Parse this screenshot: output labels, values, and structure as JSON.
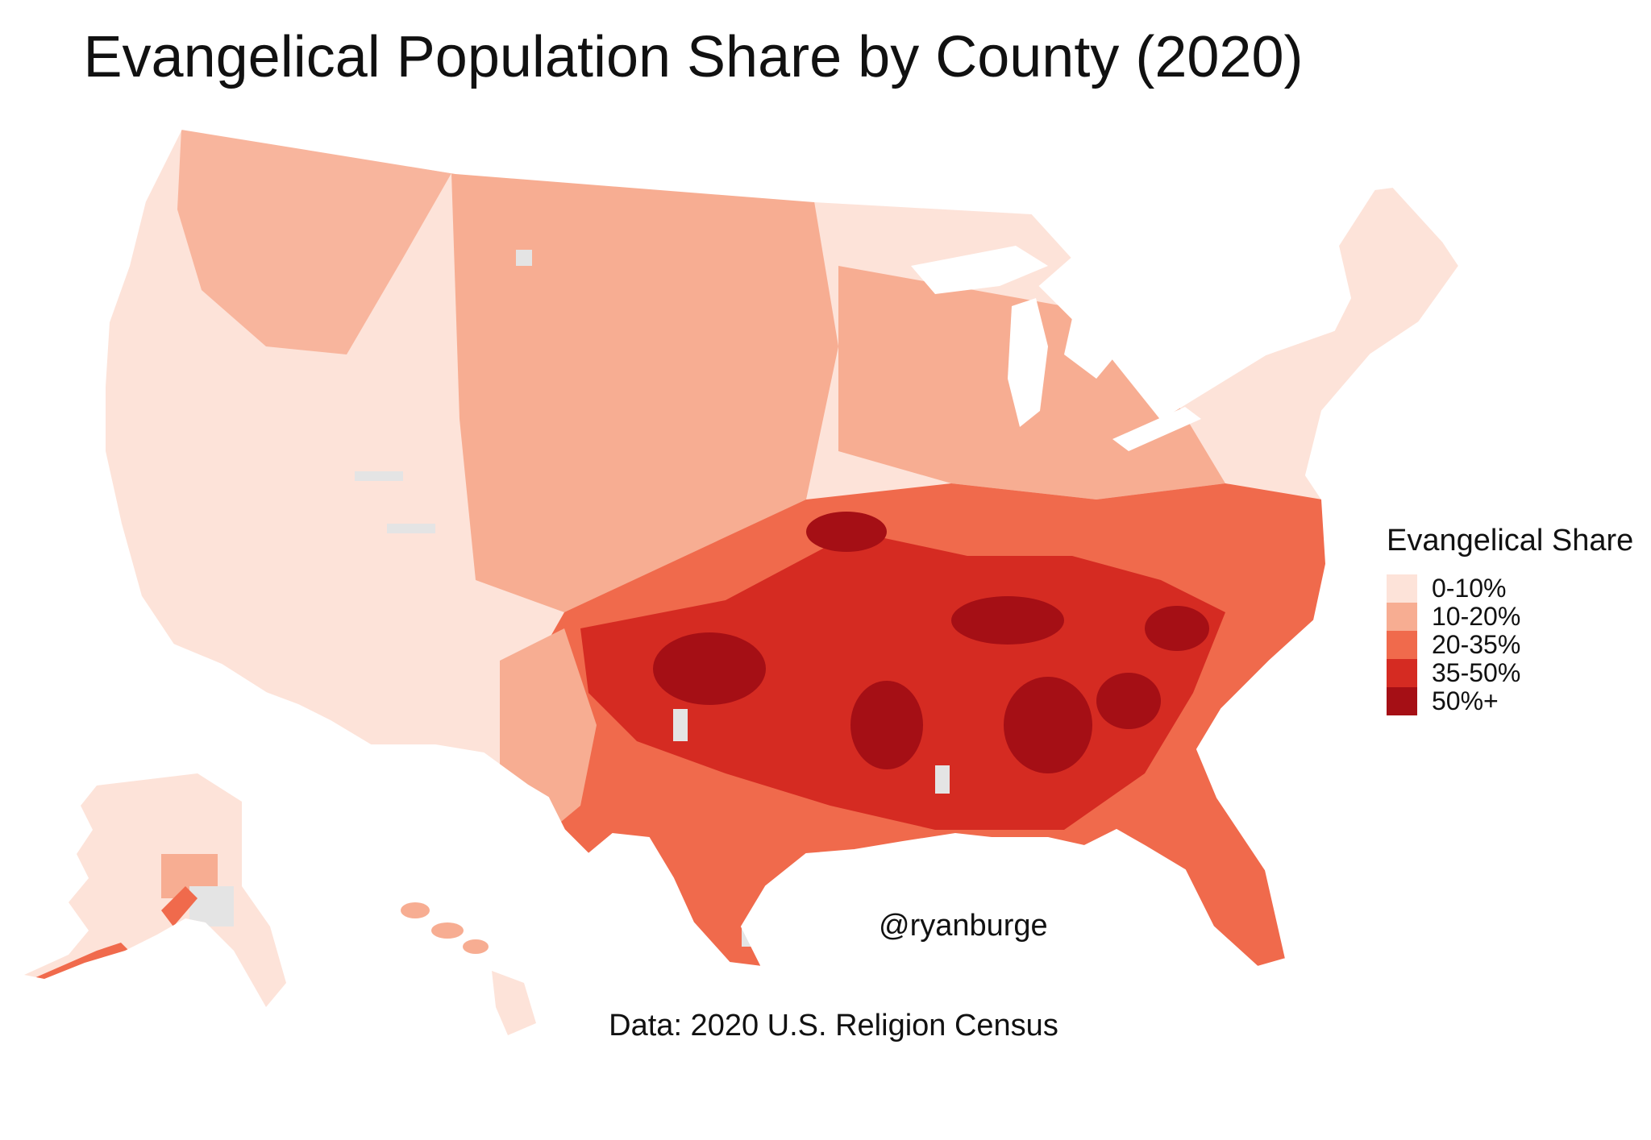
{
  "title": "Evangelical Population Share by County (2020)",
  "legend": {
    "title": "Evangelical Share",
    "items": [
      {
        "label": "0-10%",
        "color": "#fde3d9"
      },
      {
        "label": "10-20%",
        "color": "#f7ad92"
      },
      {
        "label": "20-35%",
        "color": "#f06a4c"
      },
      {
        "label": "35-50%",
        "color": "#d52b22"
      },
      {
        "label": "50%+",
        "color": "#a50f15"
      }
    ]
  },
  "no_data_color": "#e4e4e4",
  "credit": "@ryanburge",
  "source": "Data: 2020 U.S. Religion Census"
}
